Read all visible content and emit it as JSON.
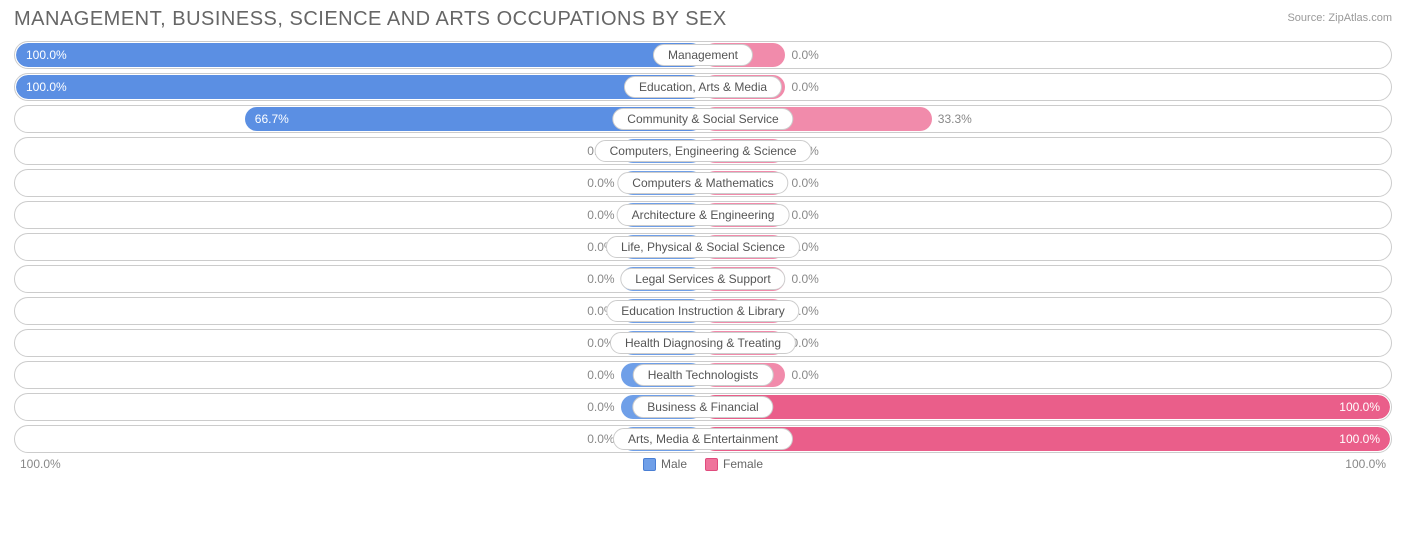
{
  "title": "MANAGEMENT, BUSINESS, SCIENCE AND ARTS OCCUPATIONS BY SEX",
  "source": "Source: ZipAtlas.com",
  "axis": {
    "left": "100.0%",
    "right": "100.0%"
  },
  "legend": {
    "male": {
      "label": "Male",
      "color": "#6f9fe8",
      "border": "#4a7fd4"
    },
    "female": {
      "label": "Female",
      "color": "#ef739b",
      "border": "#e04b7d"
    }
  },
  "style": {
    "male_fill": "#6f9fe8",
    "male_fill_strong": "#5b8fe3",
    "female_fill": "#f18bab",
    "female_fill_strong": "#ea5e8a",
    "row_border": "#cccccc",
    "text_muted": "#888888",
    "min_bar_width_pct": 12,
    "label_font_size": 12
  },
  "rows": [
    {
      "category": "Management",
      "male": 100.0,
      "female": 0.0,
      "male_label": "100.0%",
      "female_label": "0.0%"
    },
    {
      "category": "Education, Arts & Media",
      "male": 100.0,
      "female": 0.0,
      "male_label": "100.0%",
      "female_label": "0.0%"
    },
    {
      "category": "Community & Social Service",
      "male": 66.7,
      "female": 33.3,
      "male_label": "66.7%",
      "female_label": "33.3%"
    },
    {
      "category": "Computers, Engineering & Science",
      "male": 0.0,
      "female": 0.0,
      "male_label": "0.0%",
      "female_label": "0.0%"
    },
    {
      "category": "Computers & Mathematics",
      "male": 0.0,
      "female": 0.0,
      "male_label": "0.0%",
      "female_label": "0.0%"
    },
    {
      "category": "Architecture & Engineering",
      "male": 0.0,
      "female": 0.0,
      "male_label": "0.0%",
      "female_label": "0.0%"
    },
    {
      "category": "Life, Physical & Social Science",
      "male": 0.0,
      "female": 0.0,
      "male_label": "0.0%",
      "female_label": "0.0%"
    },
    {
      "category": "Legal Services & Support",
      "male": 0.0,
      "female": 0.0,
      "male_label": "0.0%",
      "female_label": "0.0%"
    },
    {
      "category": "Education Instruction & Library",
      "male": 0.0,
      "female": 0.0,
      "male_label": "0.0%",
      "female_label": "0.0%"
    },
    {
      "category": "Health Diagnosing & Treating",
      "male": 0.0,
      "female": 0.0,
      "male_label": "0.0%",
      "female_label": "0.0%"
    },
    {
      "category": "Health Technologists",
      "male": 0.0,
      "female": 0.0,
      "male_label": "0.0%",
      "female_label": "0.0%"
    },
    {
      "category": "Business & Financial",
      "male": 0.0,
      "female": 100.0,
      "male_label": "0.0%",
      "female_label": "100.0%"
    },
    {
      "category": "Arts, Media & Entertainment",
      "male": 0.0,
      "female": 100.0,
      "male_label": "0.0%",
      "female_label": "100.0%"
    }
  ]
}
